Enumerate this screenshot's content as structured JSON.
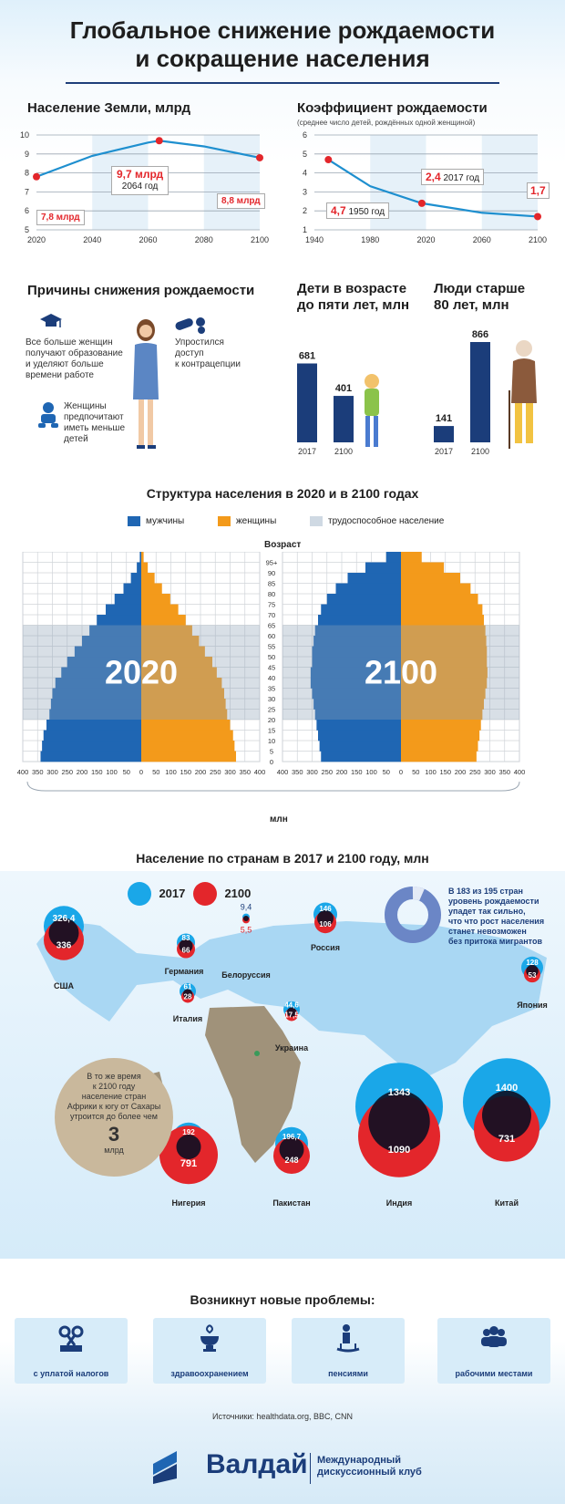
{
  "title_line1": "Глобальное снижение рождаемости",
  "title_line2": "и сокращение населения",
  "population": {
    "title": "Население Земли, млрд",
    "y_ticks": [
      "5",
      "6",
      "7",
      "8",
      "9",
      "10"
    ],
    "x_ticks": [
      "2020",
      "2040",
      "2060",
      "2080",
      "2100"
    ],
    "label_start": "7,8 млрд",
    "label_peak": "9,7 млрд",
    "label_peak_year": "2064 год",
    "label_end": "8,8 млрд"
  },
  "fertility": {
    "title": "Коэффициент рождаемости",
    "subtitle": "(среднее число детей, рождённых одной женщиной)",
    "y_ticks": [
      "1",
      "2",
      "3",
      "4",
      "5",
      "6"
    ],
    "x_ticks": [
      "1940",
      "1980",
      "2020",
      "2060",
      "2100"
    ],
    "label_1950_value": "4,7",
    "label_1950_year": "1950 год",
    "label_2017_value": "2,4",
    "label_2017_year": "2017 год",
    "label_2100_value": "1,7"
  },
  "reasons": {
    "title": "Причины снижения рождаемости",
    "reason1": [
      "Все больше женщин",
      "получают образование",
      "и уделяют больше",
      "времени работе"
    ],
    "reason2": [
      "Упростился",
      "доступ",
      "к контрацепции"
    ],
    "reason3": [
      "Женщины",
      "предпочитают",
      "иметь меньше",
      "детей"
    ]
  },
  "children": {
    "title_line1": "Дети в возрасте",
    "title_line2": "до пяти лет, млн",
    "v2017": "681",
    "v2100": "401",
    "y2017": "2017",
    "y2100": "2100"
  },
  "elderly": {
    "title_line1": "Люди старше",
    "title_line2": "80 лет, млн",
    "v2017": "141",
    "v2100": "866",
    "y2017": "2017",
    "y2100": "2100"
  },
  "structure": {
    "title": "Структура населения в 2020 и в 2100 годах",
    "legend_men": "мужчины",
    "legend_women": "женщины",
    "legend_working": "трудоспособное население",
    "age_label": "Возраст",
    "age_ticks": [
      "0",
      "5",
      "10",
      "15",
      "20",
      "25",
      "30",
      "35",
      "40",
      "45",
      "50",
      "55",
      "60",
      "65",
      "70",
      "75",
      "80",
      "85",
      "90",
      "95+"
    ],
    "x_ticks": [
      "400",
      "350",
      "300",
      "250",
      "200",
      "150",
      "100",
      "50",
      "0",
      "50",
      "100",
      "150",
      "200",
      "250",
      "300",
      "350",
      "400"
    ],
    "x_ticks_right": [
      "400",
      "350",
      "300",
      "250",
      "200",
      "150",
      "100",
      "50",
      "0",
      "50",
      "100",
      "150",
      "200",
      "250",
      "300",
      "350",
      "400"
    ],
    "unit": "млн",
    "year_left": "2020",
    "year_right": "2100"
  },
  "countries": {
    "title": "Население по странам в 2017 и 2100 году, млн",
    "legend_2017": "2017",
    "legend_2100": "2100",
    "note": [
      "В 183 из 195 стран",
      "уровень рождаемости",
      "упадет так сильно,",
      "что что рост населения",
      "станет невозможен",
      "без притока мигрантов"
    ],
    "africa": [
      "В то же время",
      "к 2100 году",
      "население стран",
      "Африки к югу от Сахары",
      "утроится до более чем"
    ],
    "africa_value": "3",
    "africa_unit": "млрд",
    "usa": {
      "name": "США",
      "v2017": "326,4",
      "v2100": "336"
    },
    "germany": {
      "name": "Германия",
      "v2017": "83",
      "v2100": "66"
    },
    "belarus": {
      "name": "Белоруссия",
      "v2017": "9,4",
      "v2100": "5,5"
    },
    "russia": {
      "name": "Россия",
      "v2017": "146",
      "v2100": "106"
    },
    "italy": {
      "name": "Италия",
      "v2017": "61",
      "v2100": "28"
    },
    "ukraine": {
      "name": "Украина",
      "v2017": "44,6",
      "v2100": "17,5"
    },
    "japan": {
      "name": "Япония",
      "v2017": "128",
      "v2100": "53"
    },
    "nigeria": {
      "name": "Нигерия",
      "v2017": "192",
      "v2100": "791"
    },
    "pakistan": {
      "name": "Пакистан",
      "v2017": "196,7",
      "v2100": "248"
    },
    "india": {
      "name": "Индия",
      "v2017": "1343",
      "v2100": "1090"
    },
    "china": {
      "name": "Китай",
      "v2017": "1400",
      "v2100": "731"
    }
  },
  "problems": {
    "title": "Возникнут новые проблемы:",
    "p1": "с уплатой налогов",
    "p2": "здравоохранением",
    "p3": "пенсиями",
    "p4": "рабочими местами"
  },
  "sources": "Источники: healthdata.org, BBC, CNN",
  "footer": {
    "brand": "Валдай",
    "club_line1": "Международный",
    "club_line2": "дискуссионный клуб"
  },
  "colors": {
    "blue": "#1f66b3",
    "orange": "#f39a1b",
    "red": "#e3262b",
    "cyan": "#1aa7e8",
    "navy": "#1b3d7a",
    "line": "#1e8fcf"
  },
  "chart_data": [
    {
      "type": "line",
      "title": "Население Земли, млрд",
      "x": [
        2020,
        2040,
        2060,
        2064,
        2080,
        2100
      ],
      "y": [
        7.8,
        8.9,
        9.6,
        9.7,
        9.4,
        8.8
      ],
      "ylim": [
        5,
        10
      ],
      "xlim": [
        2020,
        2100
      ]
    },
    {
      "type": "line",
      "title": "Коэффициент рождаемости",
      "x": [
        1950,
        1980,
        2017,
        2060,
        2100
      ],
      "y": [
        4.7,
        3.3,
        2.4,
        1.9,
        1.7
      ],
      "ylim": [
        1,
        6
      ],
      "xlim": [
        1940,
        2100
      ]
    },
    {
      "type": "bar",
      "title": "Дети в возрасте до пяти лет, млн",
      "categories": [
        "2017",
        "2100"
      ],
      "values": [
        681,
        401
      ]
    },
    {
      "type": "bar",
      "title": "Люди старше 80 лет, млн",
      "categories": [
        "2017",
        "2100"
      ],
      "values": [
        141,
        866
      ]
    },
    {
      "type": "bar",
      "title": "Структура населения в 2020 году",
      "categories": [
        "0",
        "5",
        "10",
        "15",
        "20",
        "25",
        "30",
        "35",
        "40",
        "45",
        "50",
        "55",
        "60",
        "65",
        "70",
        "75",
        "80",
        "85",
        "90",
        "95+"
      ],
      "series": [
        {
          "name": "мужчины",
          "values": [
            340,
            335,
            330,
            320,
            310,
            305,
            300,
            290,
            270,
            250,
            225,
            200,
            175,
            150,
            120,
            90,
            60,
            35,
            15,
            5
          ]
        },
        {
          "name": "женщины",
          "values": [
            320,
            315,
            310,
            300,
            290,
            285,
            280,
            272,
            255,
            240,
            215,
            195,
            172,
            150,
            125,
            98,
            70,
            45,
            22,
            8
          ]
        }
      ],
      "xlim": [
        -400,
        400
      ]
    },
    {
      "type": "bar",
      "title": "Структура населения в 2100 году",
      "categories": [
        "0",
        "5",
        "10",
        "15",
        "20",
        "25",
        "30",
        "35",
        "40",
        "45",
        "50",
        "55",
        "60",
        "65",
        "70",
        "75",
        "80",
        "85",
        "90",
        "95+"
      ],
      "series": [
        {
          "name": "мужчины",
          "values": [
            270,
            275,
            280,
            285,
            290,
            295,
            300,
            305,
            305,
            300,
            300,
            295,
            290,
            280,
            270,
            250,
            220,
            180,
            120,
            50
          ]
        },
        {
          "name": "женщины",
          "values": [
            255,
            260,
            265,
            270,
            275,
            280,
            285,
            290,
            292,
            290,
            290,
            288,
            285,
            280,
            275,
            260,
            235,
            200,
            145,
            70
          ]
        }
      ],
      "xlim": [
        -400,
        400
      ]
    }
  ]
}
